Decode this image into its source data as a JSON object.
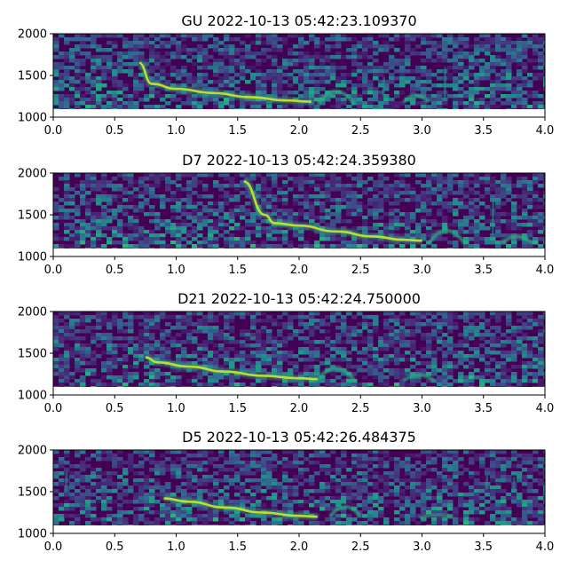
{
  "chart_data": [
    {
      "type": "heatmap",
      "title": "GU 2022-10-13 05:42:23.109370",
      "xlabel": "",
      "ylabel": "",
      "xlim": [
        0.0,
        4.0
      ],
      "ylim": [
        1000,
        2000
      ],
      "xticks": [
        "0.0",
        "0.5",
        "1.0",
        "1.5",
        "2.0",
        "2.5",
        "3.0",
        "3.5",
        "4.0"
      ],
      "yticks": [
        "1000",
        "1500",
        "2000"
      ],
      "colormap": "viridis",
      "contour_points": [
        [
          0.7,
          1650
        ],
        [
          0.8,
          1400
        ],
        [
          1.0,
          1340
        ],
        [
          1.3,
          1290
        ],
        [
          1.6,
          1240
        ],
        [
          1.9,
          1200
        ],
        [
          2.1,
          1185
        ]
      ],
      "extra_features": [
        {
          "kind": "arch",
          "x_start": 2.15,
          "x_end": 2.45,
          "y_base": 1150,
          "y_peak": 1310
        },
        {
          "kind": "arch",
          "x_start": 2.85,
          "x_end": 3.05,
          "y_base": 1180,
          "y_peak": 1260
        },
        {
          "kind": "spike",
          "x": 3.18,
          "y_low": 1220,
          "y_high": 1600
        },
        {
          "kind": "spike",
          "x": 2.68,
          "y_low": 1250,
          "y_high": 1480
        }
      ]
    },
    {
      "type": "heatmap",
      "title": "D7 2022-10-13 05:42:24.359380",
      "xlabel": "",
      "ylabel": "",
      "xlim": [
        0.0,
        4.0
      ],
      "ylim": [
        1000,
        2000
      ],
      "xticks": [
        "0.0",
        "0.5",
        "1.0",
        "1.5",
        "2.0",
        "2.5",
        "3.0",
        "3.5",
        "4.0"
      ],
      "yticks": [
        "1000",
        "1500",
        "2000"
      ],
      "colormap": "viridis",
      "contour_points": [
        [
          1.55,
          1900
        ],
        [
          1.72,
          1500
        ],
        [
          1.8,
          1400
        ],
        [
          2.0,
          1370
        ],
        [
          2.3,
          1300
        ],
        [
          2.6,
          1240
        ],
        [
          2.85,
          1200
        ],
        [
          3.0,
          1190
        ]
      ],
      "extra_features": [
        {
          "kind": "arch",
          "x_start": 3.05,
          "x_end": 3.35,
          "y_base": 1150,
          "y_peak": 1310
        },
        {
          "kind": "arch",
          "x_start": 3.65,
          "x_end": 3.9,
          "y_base": 1160,
          "y_peak": 1240
        },
        {
          "kind": "spike",
          "x": 3.57,
          "y_low": 1250,
          "y_high": 1700
        }
      ]
    },
    {
      "type": "heatmap",
      "title": "D21 2022-10-13 05:42:24.750000",
      "xlabel": "",
      "ylabel": "",
      "xlim": [
        0.0,
        4.0
      ],
      "ylim": [
        1000,
        2000
      ],
      "xticks": [
        "0.0",
        "0.5",
        "1.0",
        "1.5",
        "2.0",
        "2.5",
        "3.0",
        "3.5",
        "4.0"
      ],
      "yticks": [
        "1000",
        "1500",
        "2000"
      ],
      "colormap": "viridis",
      "contour_points": [
        [
          0.75,
          1450
        ],
        [
          0.85,
          1390
        ],
        [
          1.1,
          1340
        ],
        [
          1.4,
          1280
        ],
        [
          1.7,
          1230
        ],
        [
          2.0,
          1200
        ],
        [
          2.15,
          1190
        ]
      ],
      "extra_features": [
        {
          "kind": "arch",
          "x_start": 2.15,
          "x_end": 2.45,
          "y_base": 1180,
          "y_peak": 1320
        },
        {
          "kind": "arch",
          "x_start": 2.85,
          "x_end": 3.1,
          "y_base": 1170,
          "y_peak": 1240
        },
        {
          "kind": "spike",
          "x": 3.35,
          "y_low": 1680,
          "y_high": 1780
        }
      ]
    },
    {
      "type": "heatmap",
      "title": "D5 2022-10-13 05:42:26.484375",
      "xlabel": "",
      "ylabel": "",
      "xlim": [
        0.0,
        4.0
      ],
      "ylim": [
        1000,
        2000
      ],
      "xticks": [
        "0.0",
        "0.5",
        "1.0",
        "1.5",
        "2.0",
        "2.5",
        "3.0",
        "3.5",
        "4.0"
      ],
      "yticks": [
        "1000",
        "1500",
        "2000"
      ],
      "colormap": "viridis",
      "contour_points": [
        [
          0.9,
          1420
        ],
        [
          1.1,
          1380
        ],
        [
          1.4,
          1310
        ],
        [
          1.7,
          1250
        ],
        [
          2.0,
          1210
        ],
        [
          2.15,
          1200
        ]
      ],
      "extra_features": [
        {
          "kind": "arch",
          "x_start": 2.25,
          "x_end": 2.5,
          "y_base": 1200,
          "y_peak": 1320
        },
        {
          "kind": "arch",
          "x_start": 2.98,
          "x_end": 3.25,
          "y_base": 1190,
          "y_peak": 1220
        },
        {
          "kind": "spike",
          "x": 0.1,
          "y_low": 1500,
          "y_high": 1750
        },
        {
          "kind": "spike",
          "x": 3.52,
          "y_low": 1520,
          "y_high": 1700
        },
        {
          "kind": "spike",
          "x": 3.74,
          "y_low": 1500,
          "y_high": 1680
        }
      ]
    }
  ]
}
